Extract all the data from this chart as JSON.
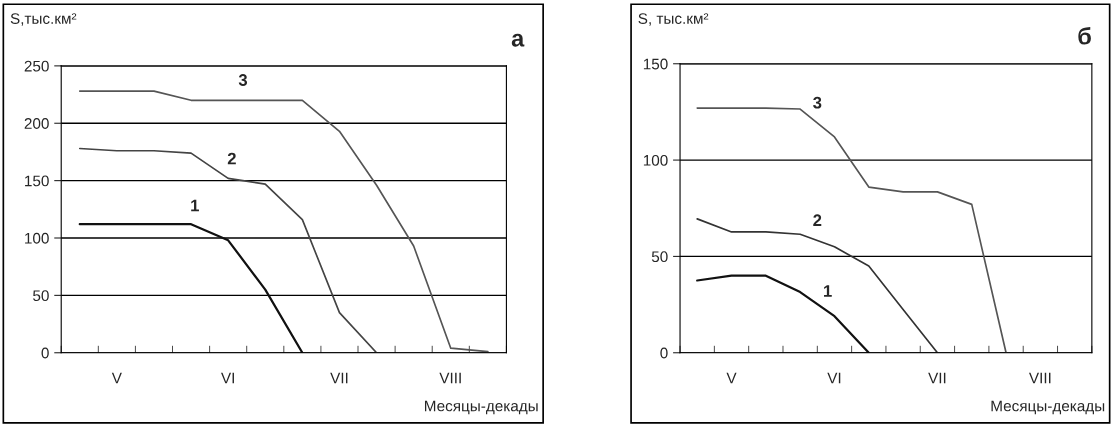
{
  "chart_data": [
    {
      "type": "line",
      "title": "а",
      "ylabel": "S,тыс.км²",
      "xlabel": "Месяцы-декады",
      "categories": [
        null,
        "V",
        null,
        null,
        "VI",
        null,
        null,
        "VII",
        null,
        null,
        "VIII",
        null
      ],
      "ylim": [
        0,
        250
      ],
      "yticks": [
        0,
        50,
        100,
        150,
        200,
        250
      ],
      "grid": "y",
      "legend": false,
      "marker": "none",
      "line_style": "solid",
      "series": [
        {
          "name": "1",
          "color": "#111111",
          "values": [
            112,
            112,
            112,
            112,
            98,
            55,
            0,
            null,
            null,
            null,
            null,
            null
          ]
        },
        {
          "name": "2",
          "color": "#444444",
          "values": [
            178,
            176,
            176,
            174,
            152,
            147,
            116,
            35,
            0,
            null,
            null,
            null
          ]
        },
        {
          "name": "3",
          "color": "#555555",
          "values": [
            228,
            228,
            228,
            220,
            220,
            220,
            220,
            193,
            146,
            93,
            4,
            1
          ]
        }
      ]
    },
    {
      "type": "line",
      "title": "б",
      "ylabel": "S, тыс.км²",
      "xlabel": "Месяцы-декады",
      "categories": [
        null,
        "V",
        null,
        null,
        "VI",
        null,
        null,
        "VII",
        null,
        null,
        "VIII",
        null
      ],
      "ylim": [
        0,
        150
      ],
      "yticks": [
        0,
        50,
        100,
        150
      ],
      "grid": "y",
      "legend": false,
      "marker": "none",
      "line_style": "solid",
      "series": [
        {
          "name": "1",
          "color": "#111111",
          "values": [
            37.5,
            40,
            40,
            31.5,
            19,
            0,
            null,
            null,
            null,
            null,
            null,
            null
          ]
        },
        {
          "name": "2",
          "color": "#333333",
          "values": [
            69.5,
            62.7,
            62.7,
            61.5,
            55,
            45,
            22.4,
            0,
            null,
            null,
            null,
            null
          ]
        },
        {
          "name": "3",
          "color": "#555555",
          "values": [
            127,
            127,
            127,
            126.5,
            112,
            86,
            83.5,
            83.5,
            77,
            0,
            null,
            null
          ]
        }
      ]
    }
  ]
}
